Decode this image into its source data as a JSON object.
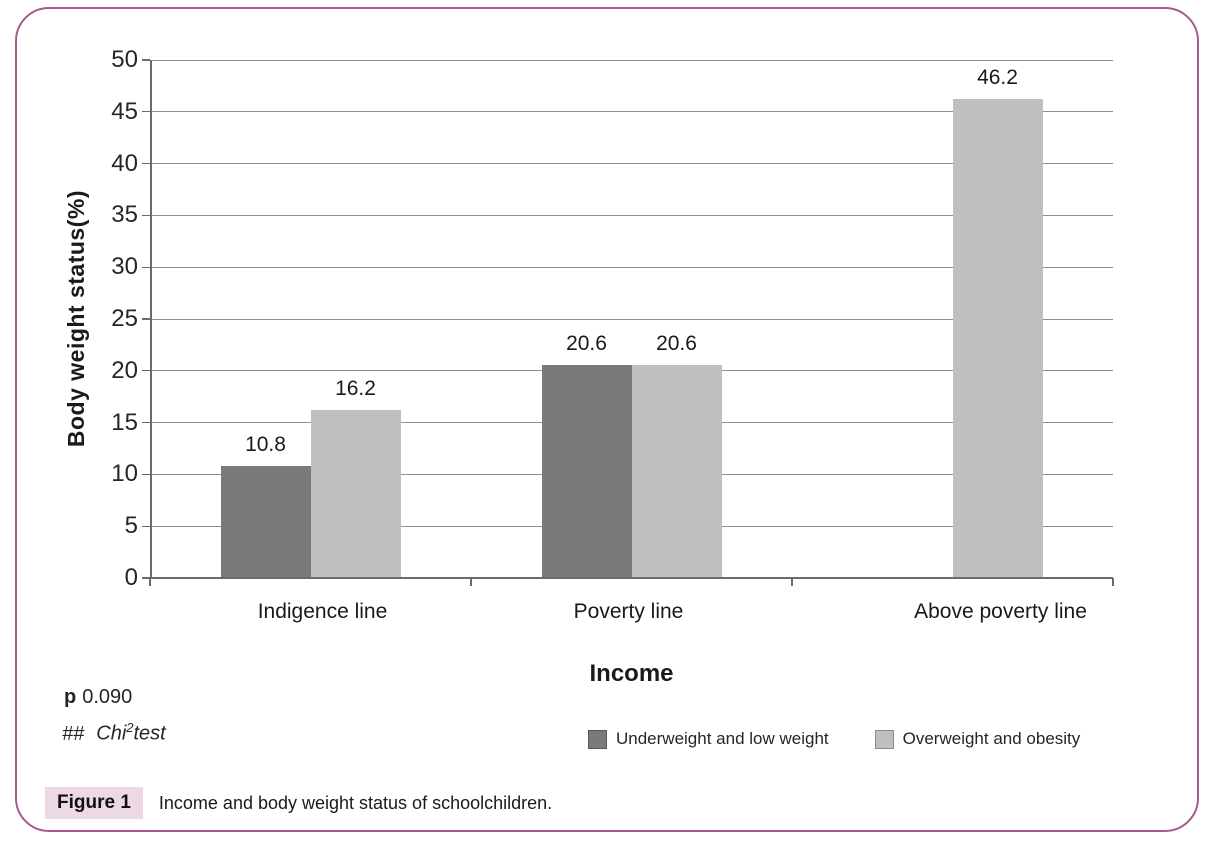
{
  "colors": {
    "frame_border": "#a85a8c",
    "caption_background": "#ecd9e4",
    "gridline": "#8f8f8f",
    "axis": "#6b6b6b",
    "series_dark": "#7a7a7a",
    "series_light": "#bfbfbf"
  },
  "chart_data": {
    "type": "bar",
    "title": "",
    "categories": [
      "Indigence line",
      "Poverty line",
      "Above poverty line"
    ],
    "series": [
      {
        "name": "Underweight and low weight",
        "color": "#7a7a7a",
        "values": [
          10.8,
          20.6,
          null
        ]
      },
      {
        "name": "Overweight and obesity",
        "color": "#bfbfbf",
        "values": [
          16.2,
          20.6,
          46.2
        ]
      }
    ],
    "xlabel": "Income",
    "ylabel": "Body weight status(%)",
    "ylim": [
      0,
      50
    ],
    "ytick_step": 5,
    "yticks": [
      0,
      5,
      10,
      15,
      20,
      25,
      30,
      35,
      40,
      45,
      50
    ],
    "grid": true,
    "legend_position": "bottom",
    "value_labels": true
  },
  "notes": {
    "p_label": "p",
    "p_value": "0.090",
    "test_prefix": "##",
    "test_base": "Chi",
    "test_superscript": "2",
    "test_suffix": "test"
  },
  "caption": {
    "label": "Figure 1",
    "text": "Income and body weight status of schoolchildren."
  }
}
